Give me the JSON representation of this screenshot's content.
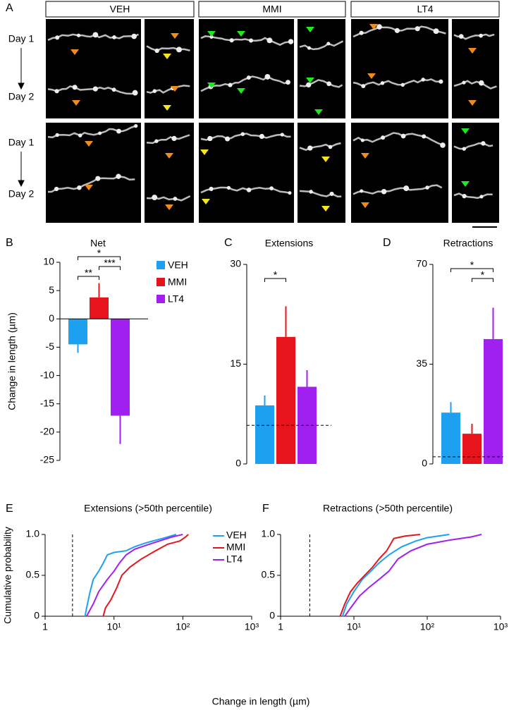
{
  "panel_a": {
    "label": "A",
    "conditions": [
      "VEH",
      "MMI",
      "LT4"
    ],
    "rows": [
      "Day 1",
      "Day 2",
      "Day 1",
      "Day 2"
    ]
  },
  "chart_data": [
    {
      "panel": "B",
      "type": "bar",
      "title": "Net",
      "ylabel": "Change in length (µm)",
      "categories": [
        "VEH",
        "MMI",
        "LT4"
      ],
      "values": [
        -4.5,
        3.8,
        -17.1
      ],
      "errors": [
        1.5,
        2.5,
        5
      ],
      "colors": [
        "#1ea0f0",
        "#e8141b",
        "#a020f0"
      ],
      "legend": true,
      "ylim": [
        -25,
        10
      ],
      "yticks": [
        10,
        5,
        0,
        -5,
        -10,
        -15,
        -20,
        -25
      ],
      "significance": [
        {
          "pair": [
            0,
            1
          ],
          "label": "**"
        },
        {
          "pair": [
            1,
            2
          ],
          "label": "***"
        },
        {
          "pair": [
            0,
            2
          ],
          "label": "*"
        }
      ]
    },
    {
      "panel": "C",
      "type": "bar",
      "title": "Extensions",
      "values": [
        8.8,
        19.1,
        11.6
      ],
      "errors": [
        1.5,
        4.6,
        2.5
      ],
      "colors": [
        "#1ea0f0",
        "#e8141b",
        "#a020f0"
      ],
      "ylim": [
        0,
        30
      ],
      "yticks": [
        0,
        15,
        30
      ],
      "reference_line": 5.8,
      "significance": [
        {
          "pair": [
            0,
            1
          ],
          "label": "*"
        }
      ]
    },
    {
      "panel": "D",
      "type": "bar",
      "title": "Retractions",
      "values": [
        18,
        10.6,
        43.8
      ],
      "errors": [
        3.7,
        3.5,
        11
      ],
      "colors": [
        "#1ea0f0",
        "#e8141b",
        "#a020f0"
      ],
      "ylim": [
        0,
        70
      ],
      "yticks": [
        0,
        35,
        70
      ],
      "reference_line": 2.5,
      "significance": [
        {
          "pair": [
            1,
            2
          ],
          "label": "*"
        },
        {
          "pair": [
            0,
            2
          ],
          "label": "*"
        }
      ]
    },
    {
      "panel": "E",
      "type": "line",
      "title": "Extensions (>50th percentile)",
      "ylabel": "Cumulative probability",
      "xlabel": "Change in length (µm)",
      "legend": true,
      "xscale": "log",
      "xlim": [
        1,
        1000
      ],
      "xticks": [
        {
          "value": 1,
          "label": "1"
        },
        {
          "value": 10,
          "label": "10¹"
        },
        {
          "value": 100,
          "label": "10²"
        },
        {
          "value": 1000,
          "label": "10³"
        }
      ],
      "ylim": [
        0,
        1
      ],
      "yticks": [
        0,
        0.5,
        {
          "value": 1,
          "label": "1.0"
        }
      ],
      "reference_x": 2.5,
      "series": [
        {
          "name": "VEH",
          "color": "#1ea0f0",
          "x": [
            3.8,
            4,
            4.5,
            5,
            6,
            7,
            8,
            10,
            15,
            20,
            30,
            50,
            80
          ],
          "values": [
            0,
            0.1,
            0.3,
            0.45,
            0.55,
            0.65,
            0.75,
            0.78,
            0.8,
            0.85,
            0.9,
            0.95,
            1
          ]
        },
        {
          "name": "MMI",
          "color": "#e8141b",
          "x": [
            7,
            7.5,
            9,
            11,
            13,
            17,
            25,
            40,
            60,
            90,
            110,
            120
          ],
          "values": [
            0,
            0.1,
            0.2,
            0.35,
            0.5,
            0.6,
            0.7,
            0.8,
            0.88,
            0.92,
            0.97,
            1
          ]
        },
        {
          "name": "LT4",
          "color": "#a020f0",
          "x": [
            4,
            5,
            6,
            8,
            10,
            12,
            15,
            20,
            30,
            50,
            70,
            100
          ],
          "values": [
            0,
            0.15,
            0.3,
            0.45,
            0.55,
            0.65,
            0.75,
            0.82,
            0.87,
            0.93,
            0.97,
            1
          ]
        }
      ]
    },
    {
      "panel": "F",
      "type": "line",
      "title": "Retractions (>50th percentile)",
      "xscale": "log",
      "xlim": [
        1,
        1000
      ],
      "xticks": [
        {
          "value": 1,
          "label": "1"
        },
        {
          "value": 10,
          "label": "10¹"
        },
        {
          "value": 100,
          "label": "10²"
        },
        {
          "value": 1000,
          "label": "10³"
        }
      ],
      "ylim": [
        0,
        1
      ],
      "yticks": [
        0,
        0.5,
        {
          "value": 1,
          "label": "1.0"
        }
      ],
      "reference_x": 2.5,
      "series": [
        {
          "name": "VEH",
          "color": "#1ea0f0",
          "x": [
            7,
            8,
            10,
            13,
            17,
            22,
            30,
            45,
            70,
            100,
            200
          ],
          "values": [
            0,
            0.15,
            0.3,
            0.45,
            0.55,
            0.65,
            0.75,
            0.85,
            0.92,
            0.96,
            1
          ]
        },
        {
          "name": "MMI",
          "color": "#e8141b",
          "x": [
            6.5,
            7.5,
            9,
            11,
            14,
            18,
            22,
            28,
            35,
            50,
            80
          ],
          "values": [
            0,
            0.15,
            0.3,
            0.4,
            0.5,
            0.6,
            0.7,
            0.8,
            0.95,
            0.98,
            1
          ]
        },
        {
          "name": "LT4",
          "color": "#a020f0",
          "x": [
            7.5,
            9,
            12,
            16,
            22,
            30,
            40,
            60,
            100,
            200,
            400,
            550
          ],
          "values": [
            0,
            0.1,
            0.25,
            0.35,
            0.45,
            0.55,
            0.7,
            0.8,
            0.88,
            0.93,
            0.97,
            1
          ]
        }
      ]
    }
  ]
}
